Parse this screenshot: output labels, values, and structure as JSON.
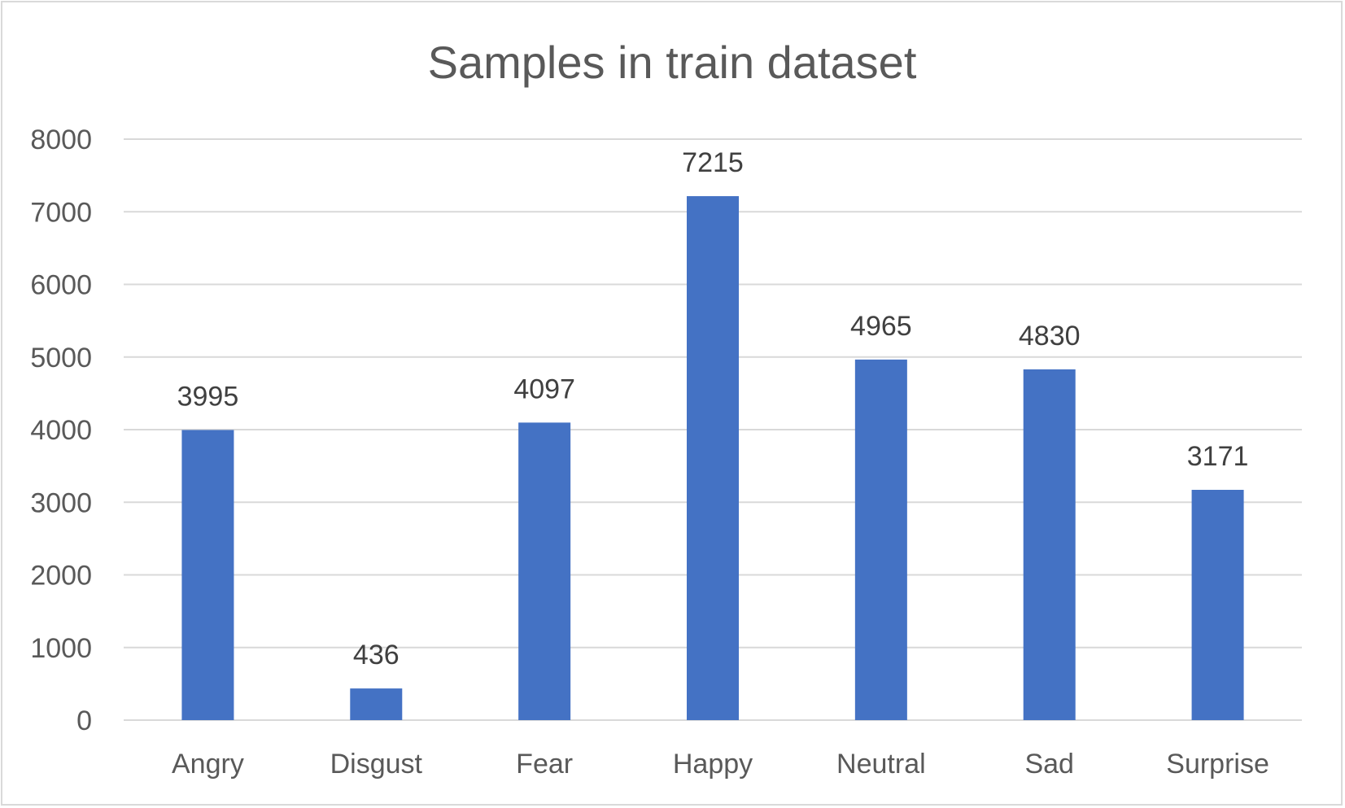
{
  "chart_data": {
    "type": "bar",
    "title": "Samples in train dataset",
    "categories": [
      "Angry",
      "Disgust",
      "Fear",
      "Happy",
      "Neutral",
      "Sad",
      "Surprise"
    ],
    "values": [
      3995,
      436,
      4097,
      7215,
      4965,
      4830,
      3171
    ],
    "data_labels": [
      "3995",
      "436",
      "4097",
      "7215",
      "4965",
      "4830",
      "3171"
    ],
    "yticks": [
      "0",
      "1000",
      "2000",
      "3000",
      "4000",
      "5000",
      "6000",
      "7000",
      "8000"
    ],
    "ylim": [
      0,
      8000
    ],
    "xlabel": "",
    "ylabel": "",
    "grid": true,
    "legend": "none",
    "bar_color": "#4472C4",
    "grid_color": "#d9d9d9"
  }
}
